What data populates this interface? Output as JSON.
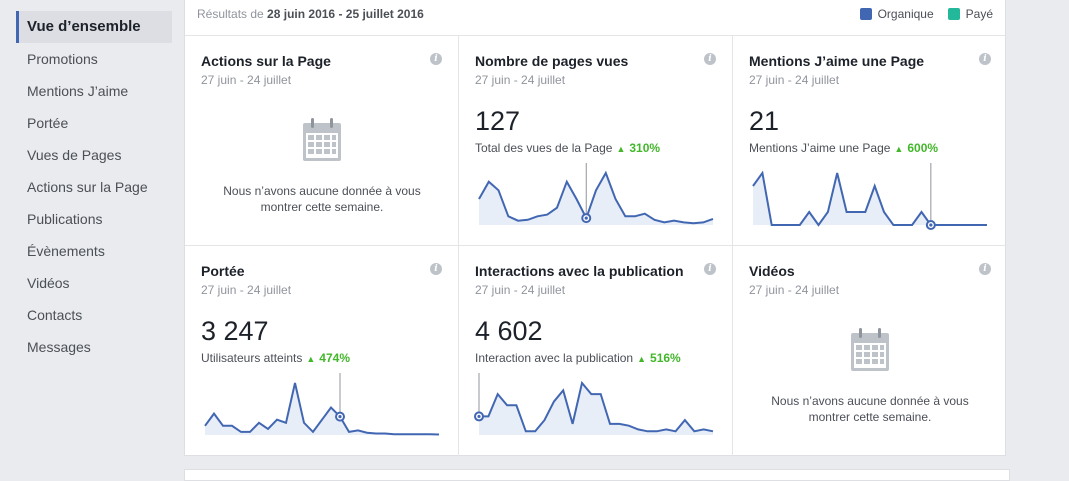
{
  "sidebar": {
    "items": [
      {
        "label": "Vue d’ensemble",
        "active": true
      },
      {
        "label": "Promotions"
      },
      {
        "label": "Mentions J’aime"
      },
      {
        "label": "Portée"
      },
      {
        "label": "Vues de Pages"
      },
      {
        "label": "Actions sur la Page"
      },
      {
        "label": "Publications"
      },
      {
        "label": "Évènements"
      },
      {
        "label": "Vidéos"
      },
      {
        "label": "Contacts"
      },
      {
        "label": "Messages"
      }
    ]
  },
  "header": {
    "results_prefix": "Résultats de",
    "date_from": "28 juin 2016",
    "separator": "-",
    "date_to": "25 juillet 2016",
    "legend": [
      {
        "label": "Organique",
        "color": "#4267b2"
      },
      {
        "label": "Payé",
        "color": "#23b899"
      }
    ]
  },
  "cards": [
    {
      "title": "Actions sur la Page",
      "date": "27 juin - 24 juillet",
      "empty": true,
      "empty_text_1": "Nous n’avons aucune donnée à vous",
      "empty_text_2": "montrer cette semaine."
    },
    {
      "title": "Nombre de pages vues",
      "date": "27 juin - 24 juillet",
      "value": "127",
      "label": "Total des vues de la Page",
      "delta": "310%",
      "series": [
        3,
        5,
        4,
        1,
        0.5,
        0.6,
        1,
        1.2,
        2,
        5,
        3,
        0.8,
        4,
        6,
        3,
        1,
        1,
        1.3,
        0.6,
        0.3,
        0.5,
        0.3,
        0.2,
        0.3,
        0.7
      ],
      "marker_index": 11
    },
    {
      "title": "Mentions J’aime une Page",
      "date": "27 juin - 24 juillet",
      "value": "21",
      "label": "Mentions J’aime une Page",
      "delta": "600%",
      "series": [
        3,
        4,
        0,
        0,
        0,
        0,
        1,
        0,
        1,
        4,
        1,
        1,
        1,
        3,
        1,
        0,
        0,
        0,
        1,
        0,
        0,
        0,
        0,
        0,
        0,
        0
      ],
      "marker_index": 19
    },
    {
      "title": "Portée",
      "date": "27 juin - 24 juillet",
      "value": "3 247",
      "label": "Utilisateurs atteints",
      "delta": "474%",
      "series": [
        6,
        14,
        6,
        6,
        2,
        2,
        8,
        4,
        10,
        8,
        34,
        8,
        2,
        10,
        18,
        12,
        2,
        3,
        1.5,
        1,
        1,
        0.5,
        0.5,
        0.5,
        0.5,
        0.5,
        0.3
      ],
      "marker_index": 15
    },
    {
      "title": "Interactions avec la publication",
      "date": "27 juin - 24 juillet",
      "value": "4 602",
      "label": "Interaction avec la publication",
      "delta": "516%",
      "series": [
        10,
        10,
        22,
        16,
        16,
        2,
        2,
        8,
        18,
        24,
        6,
        28,
        22,
        22,
        6,
        6,
        5,
        3,
        2,
        2,
        3,
        2,
        8,
        2,
        3,
        2
      ],
      "marker_index": 0
    },
    {
      "title": "Vidéos",
      "date": "27 juin - 24 juillet",
      "empty": true,
      "empty_text_1": "Nous n’avons aucune donnée à vous",
      "empty_text_2": "montrer cette semaine."
    }
  ],
  "colors": {
    "line": "#4267b2",
    "fill": "#e8eef8",
    "marker_line": "#90949c"
  },
  "icons": {
    "info": "info-icon",
    "empty": "calendar-icon",
    "trend": "up-triangle-icon"
  }
}
